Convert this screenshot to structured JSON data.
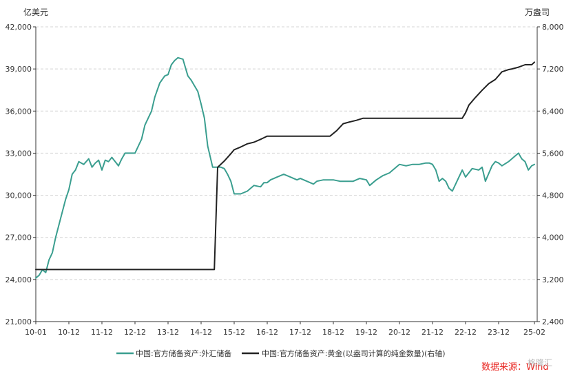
{
  "chart_data": {
    "type": "line",
    "left_axis": {
      "unit": "亿美元",
      "ylim": [
        21000,
        42000
      ],
      "ticks": [
        21000,
        24000,
        27000,
        30000,
        33000,
        36000,
        39000,
        42000
      ],
      "tick_labels": [
        "21,000",
        "24,000",
        "27,000",
        "30,000",
        "33,000",
        "36,000",
        "39,000",
        "42,000"
      ]
    },
    "right_axis": {
      "unit": "万盎司",
      "ylim": [
        2400,
        8000
      ],
      "ticks": [
        2400,
        3200,
        4000,
        4800,
        5600,
        6400,
        7200,
        8000
      ],
      "tick_labels": [
        "2,400",
        "3,200",
        "4,000",
        "4,800",
        "5,600",
        "6,400",
        "7,200",
        "8,000"
      ]
    },
    "x_axis": {
      "range": [
        2010.0,
        2025.1667
      ],
      "ticks": [
        2010.0,
        2011.0,
        2012.0,
        2013.0,
        2014.0,
        2015.0,
        2016.0,
        2017.0,
        2018.0,
        2019.0,
        2020.0,
        2021.0,
        2022.0,
        2023.0,
        2024.0,
        2025.0833
      ],
      "tick_labels": [
        "10-01",
        "10-12",
        "11-12",
        "12-12",
        "13-12",
        "14-12",
        "15-12",
        "16-12",
        "17-12",
        "18-12",
        "19-12",
        "20-12",
        "21-12",
        "22-12",
        "23-12",
        "25-02"
      ]
    },
    "grid": true,
    "legend_position": "bottom",
    "series": [
      {
        "name": "中国:官方储备资产:外汇储备",
        "axis": "left",
        "color": "#3a9e8f",
        "x": [
          2010.0,
          2010.1,
          2010.2,
          2010.3,
          2010.4,
          2010.5,
          2010.6,
          2010.8,
          2010.9,
          2011.0,
          2011.1,
          2011.2,
          2011.3,
          2011.45,
          2011.6,
          2011.7,
          2011.8,
          2011.9,
          2012.0,
          2012.1,
          2012.2,
          2012.3,
          2012.5,
          2012.6,
          2012.7,
          2012.9,
          2013.0,
          2013.2,
          2013.3,
          2013.5,
          2013.6,
          2013.75,
          2013.9,
          2014.0,
          2014.1,
          2014.2,
          2014.3,
          2014.45,
          2014.6,
          2014.7,
          2014.8,
          2014.9,
          2015.0,
          2015.1,
          2015.2,
          2015.35,
          2015.5,
          2015.6,
          2015.7,
          2015.8,
          2015.9,
          2016.0,
          2016.2,
          2016.4,
          2016.6,
          2016.8,
          2016.9,
          2017.0,
          2017.1,
          2017.3,
          2017.5,
          2017.7,
          2017.9,
          2018.0,
          2018.2,
          2018.4,
          2018.5,
          2018.7,
          2018.8,
          2019.0,
          2019.2,
          2019.4,
          2019.6,
          2019.8,
          2020.0,
          2020.1,
          2020.3,
          2020.5,
          2020.7,
          2020.9,
          2021.0,
          2021.2,
          2021.4,
          2021.6,
          2021.8,
          2021.9,
          2022.0,
          2022.1,
          2022.2,
          2022.3,
          2022.4,
          2022.5,
          2022.6,
          2022.8,
          2022.9,
          2023.0,
          2023.2,
          2023.4,
          2023.5,
          2023.6,
          2023.8,
          2023.9,
          2024.0,
          2024.1,
          2024.3,
          2024.5,
          2024.6,
          2024.7,
          2024.8,
          2024.9,
          2025.0,
          2025.0833
        ],
        "y": [
          24100,
          24300,
          24700,
          24500,
          25400,
          25900,
          27000,
          28800,
          29700,
          30400,
          31500,
          31800,
          32400,
          32200,
          32600,
          32000,
          32300,
          32500,
          31800,
          32500,
          32400,
          32700,
          32100,
          32600,
          33000,
          33000,
          33000,
          34000,
          35000,
          36000,
          37000,
          38000,
          38500,
          38600,
          39300,
          39600,
          39800,
          39700,
          38500,
          38200,
          37800,
          37400,
          36500,
          35500,
          33500,
          32000,
          32000,
          32000,
          31900,
          31500,
          31000,
          30100,
          30100,
          30300,
          30700,
          30600,
          30900,
          30900,
          31100,
          31300,
          31500,
          31300,
          31100,
          31200,
          31000,
          30800,
          31000,
          31100,
          31100,
          31100,
          31000,
          31000,
          31000,
          31200,
          31100,
          30700,
          31100,
          31400,
          31600,
          32000,
          32200,
          32100,
          32200,
          32200,
          32300,
          32300,
          32200,
          31800,
          31000,
          31200,
          31000,
          30500,
          30300,
          31300,
          31800,
          31300,
          31900,
          31800,
          32000,
          31000,
          32100,
          32400,
          32300,
          32100,
          32400,
          32800,
          33000,
          32600,
          32400,
          31800,
          32100,
          32200
        ]
      },
      {
        "name": "中国:官方储备资产:黄金(以盎司计算的纯金数量)(右轴)",
        "axis": "right",
        "color": "#222222",
        "x": [
          2010.0,
          2015.4,
          2015.5,
          2015.7,
          2015.9,
          2016.0,
          2016.2,
          2016.4,
          2016.6,
          2016.8,
          2017.0,
          2018.9,
          2019.1,
          2019.3,
          2019.5,
          2019.7,
          2019.9,
          2020.0,
          2020.5,
          2021.0,
          2021.5,
          2022.0,
          2022.5,
          2022.9,
          2023.0,
          2023.1,
          2023.3,
          2023.5,
          2023.7,
          2023.9,
          2024.1,
          2024.3,
          2024.4,
          2024.6,
          2024.8,
          2025.0,
          2025.0833
        ],
        "y": [
          3389,
          3389,
          5331,
          5450,
          5590,
          5666,
          5718,
          5778,
          5808,
          5864,
          5924,
          5924,
          6027,
          6161,
          6194,
          6224,
          6264,
          6264,
          6264,
          6264,
          6264,
          6264,
          6264,
          6264,
          6367,
          6512,
          6660,
          6795,
          6920,
          7000,
          7146,
          7187,
          7200,
          7233,
          7280,
          7280,
          7329
        ]
      }
    ]
  },
  "source_label": "数据来源：Wind",
  "watermark": "格隆汇"
}
